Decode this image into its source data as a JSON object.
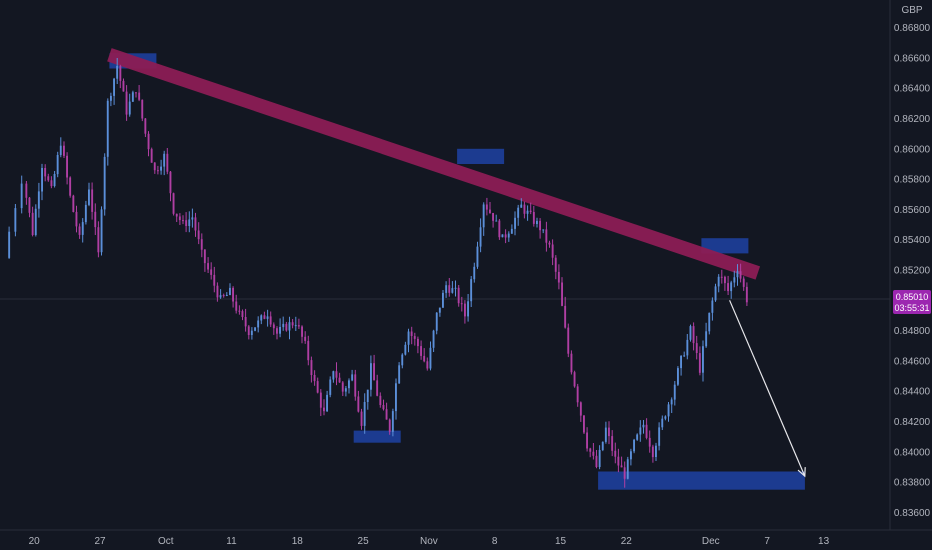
{
  "colors": {
    "background": "#131722",
    "axis_text": "#b2b5be",
    "candle_up": "#5b8fd9",
    "candle_down": "#b03fa3",
    "trendline": "#8c1d55",
    "zone": "#1e3f9c",
    "price_tag": "#9c27b0"
  },
  "axis": {
    "currency": "GBP",
    "price_labels": [
      "0.86800",
      "0.86600",
      "0.86400",
      "0.86200",
      "0.86000",
      "0.85800",
      "0.85600",
      "0.85400",
      "0.85200",
      "0.85000",
      "0.84800",
      "0.84600",
      "0.84400",
      "0.84200",
      "0.84000",
      "0.83800",
      "0.83600"
    ],
    "time_labels": [
      "20",
      "27",
      "Oct",
      "11",
      "18",
      "25",
      "Nov",
      "8",
      "15",
      "22",
      "Dec",
      "7",
      "13"
    ]
  },
  "price_tag": {
    "price": "0.85010",
    "countdown": "03:55:31"
  },
  "chart_data": {
    "type": "candlestick",
    "instrument_quote": "GBP",
    "y_range": [
      0.8355,
      0.8685
    ],
    "x_range": [
      "2021-09-17",
      "2021-12-14"
    ],
    "last_price": 0.8501,
    "trendline": {
      "from": [
        "2021-09-28",
        0.8662
      ],
      "to": [
        "2021-12-06",
        0.8518
      ]
    },
    "zones": [
      {
        "from": "2021-09-28",
        "to": "2021-10-03",
        "low": 0.8653,
        "high": 0.8663
      },
      {
        "from": "2021-11-04",
        "to": "2021-11-09",
        "low": 0.859,
        "high": 0.86
      },
      {
        "from": "2021-10-24",
        "to": "2021-10-29",
        "low": 0.8406,
        "high": 0.8414
      },
      {
        "from": "2021-11-30",
        "to": "2021-12-05",
        "low": 0.8531,
        "high": 0.8541
      },
      {
        "from": "2021-11-19",
        "to": "2021-12-11",
        "low": 0.8375,
        "high": 0.8387
      }
    ],
    "projection_arrow": {
      "from": [
        "2021-12-03",
        0.85
      ],
      "to": [
        "2021-12-11",
        0.8384
      ]
    },
    "series": [
      {
        "segments": [
          [
            "2021-09-17",
            0.8528
          ],
          [
            "2021-09-19",
            0.858
          ],
          [
            "2021-09-20",
            0.8545
          ],
          [
            "2021-09-21",
            0.859
          ],
          [
            "2021-09-22",
            0.8572
          ],
          [
            "2021-09-23",
            0.8605
          ],
          [
            "2021-09-24",
            0.8568
          ],
          [
            "2021-09-25",
            0.854
          ],
          [
            "2021-09-26",
            0.8575
          ],
          [
            "2021-09-27",
            0.853
          ],
          [
            "2021-09-28",
            0.863
          ],
          [
            "2021-09-29",
            0.8655
          ],
          [
            "2021-09-30",
            0.8625
          ],
          [
            "2021-10-01",
            0.864
          ],
          [
            "2021-10-02",
            0.861
          ],
          [
            "2021-10-03",
            0.8585
          ],
          [
            "2021-10-04",
            0.8595
          ],
          [
            "2021-10-05",
            0.856
          ],
          [
            "2021-10-06",
            0.855
          ],
          [
            "2021-10-07",
            0.8555
          ],
          [
            "2021-10-08",
            0.853
          ],
          [
            "2021-10-09",
            0.8515
          ],
          [
            "2021-10-10",
            0.85
          ],
          [
            "2021-10-11",
            0.8505
          ],
          [
            "2021-10-12",
            0.849
          ],
          [
            "2021-10-13",
            0.848
          ],
          [
            "2021-10-14",
            0.8485
          ],
          [
            "2021-10-15",
            0.8492
          ],
          [
            "2021-10-16",
            0.8478
          ],
          [
            "2021-10-17",
            0.8483
          ],
          [
            "2021-10-18",
            0.8486
          ],
          [
            "2021-10-19",
            0.847
          ],
          [
            "2021-10-20",
            0.8445
          ],
          [
            "2021-10-21",
            0.8425
          ],
          [
            "2021-10-22",
            0.8455
          ],
          [
            "2021-10-23",
            0.844
          ],
          [
            "2021-10-24",
            0.845
          ],
          [
            "2021-10-25",
            0.842
          ],
          [
            "2021-10-26",
            0.8455
          ],
          [
            "2021-10-27",
            0.843
          ],
          [
            "2021-10-28",
            0.8415
          ],
          [
            "2021-10-29",
            0.846
          ],
          [
            "2021-10-30",
            0.848
          ],
          [
            "2021-10-31",
            0.847
          ],
          [
            "2021-11-01",
            0.8455
          ],
          [
            "2021-11-02",
            0.849
          ],
          [
            "2021-11-03",
            0.851
          ],
          [
            "2021-11-04",
            0.8505
          ],
          [
            "2021-11-05",
            0.849
          ],
          [
            "2021-11-06",
            0.8525
          ],
          [
            "2021-11-07",
            0.8565
          ],
          [
            "2021-11-08",
            0.8555
          ],
          [
            "2021-11-09",
            0.854
          ],
          [
            "2021-11-10",
            0.855
          ],
          [
            "2021-11-11",
            0.8562
          ],
          [
            "2021-11-12",
            0.8555
          ],
          [
            "2021-11-13",
            0.8548
          ],
          [
            "2021-11-14",
            0.8535
          ],
          [
            "2021-11-15",
            0.851
          ],
          [
            "2021-11-16",
            0.8465
          ],
          [
            "2021-11-17",
            0.8435
          ],
          [
            "2021-11-18",
            0.8405
          ],
          [
            "2021-11-19",
            0.839
          ],
          [
            "2021-11-20",
            0.8415
          ],
          [
            "2021-11-21",
            0.8395
          ],
          [
            "2021-11-22",
            0.8385
          ],
          [
            "2021-11-23",
            0.8405
          ],
          [
            "2021-11-24",
            0.8418
          ],
          [
            "2021-11-25",
            0.84
          ],
          [
            "2021-11-26",
            0.842
          ],
          [
            "2021-11-27",
            0.8438
          ],
          [
            "2021-11-28",
            0.846
          ],
          [
            "2021-11-29",
            0.848
          ],
          [
            "2021-11-30",
            0.8455
          ],
          [
            "2021-12-01",
            0.849
          ],
          [
            "2021-12-02",
            0.8518
          ],
          [
            "2021-12-03",
            0.8506
          ],
          [
            "2021-12-04",
            0.8522
          ],
          [
            "2021-12-05",
            0.8501
          ]
        ]
      }
    ]
  }
}
